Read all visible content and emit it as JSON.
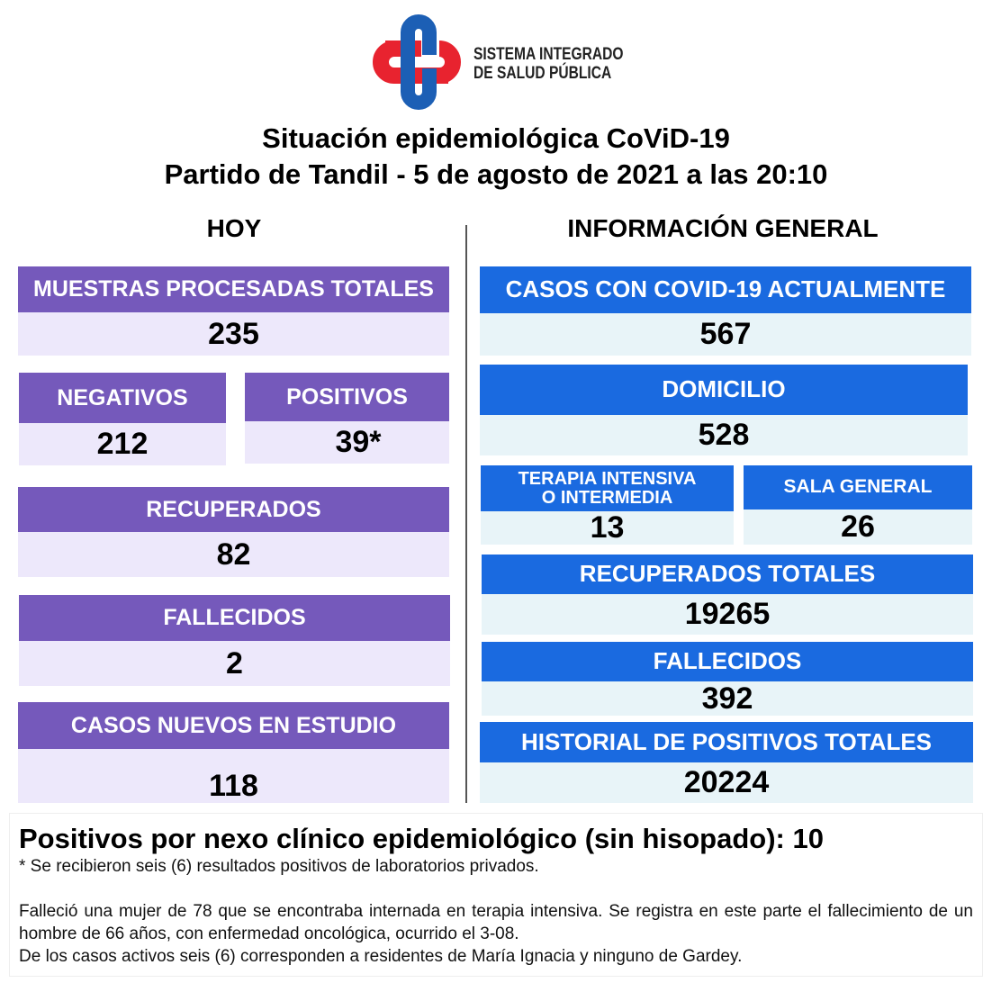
{
  "logo": {
    "line1": "SISTEMA INTEGRADO",
    "line2": "DE SALUD PÚBLICA",
    "colors": {
      "red": "#e8232f",
      "blue": "#1c5fb5"
    }
  },
  "title": {
    "line1": "Situación epidemiológica CoViD-19",
    "line2": "Partido de Tandil - 5 de agosto de 2021 a las 20:10"
  },
  "hoy": {
    "heading": "HOY",
    "muestras": {
      "label": "MUESTRAS PROCESADAS TOTALES",
      "value": "235"
    },
    "negativos": {
      "label": "NEGATIVOS",
      "value": "212"
    },
    "positivos": {
      "label": "POSITIVOS",
      "value": "39*"
    },
    "recuperados": {
      "label": "RECUPERADOS",
      "value": "82"
    },
    "fallecidos": {
      "label": "FALLECIDOS",
      "value": "2"
    },
    "nuevos": {
      "label": "CASOS NUEVOS EN ESTUDIO",
      "value": "118"
    }
  },
  "general": {
    "heading": "INFORMACIÓN GENERAL",
    "actuales": {
      "label": "CASOS CON COVID-19 ACTUALMENTE",
      "value": "567"
    },
    "domicilio": {
      "label": "DOMICILIO",
      "value": "528"
    },
    "terapia": {
      "label1": "TERAPIA INTENSIVA",
      "label2": "O INTERMEDIA",
      "value": "13"
    },
    "sala": {
      "label": "SALA GENERAL",
      "value": "26"
    },
    "recuperados": {
      "label": "RECUPERADOS TOTALES",
      "value": "19265"
    },
    "fallecidos": {
      "label": "FALLECIDOS",
      "value": "392"
    },
    "historial": {
      "label": "HISTORIAL DE POSITIVOS TOTALES",
      "value": "20224"
    }
  },
  "colors": {
    "purple": "#7559bb",
    "purple_light": "#ede8fb",
    "blue": "#1a6ae0",
    "blue_light": "#e8f4f8"
  },
  "notes": {
    "nexo": "Positivos por nexo clínico epidemiológico (sin hisopado): 10",
    "asterisk": "* Se recibieron seis (6) resultados positivos de laboratorios privados.",
    "p1": "Falleció una mujer de 78 que se encontraba internada en terapia intensiva. Se registra en este parte el fallecimiento de un hombre de 66 años, con enfermedad oncológica, ocurrido el 3-08.",
    "p2": "De los casos activos seis (6) corresponden a residentes de María Ignacia y ninguno de Gardey."
  }
}
